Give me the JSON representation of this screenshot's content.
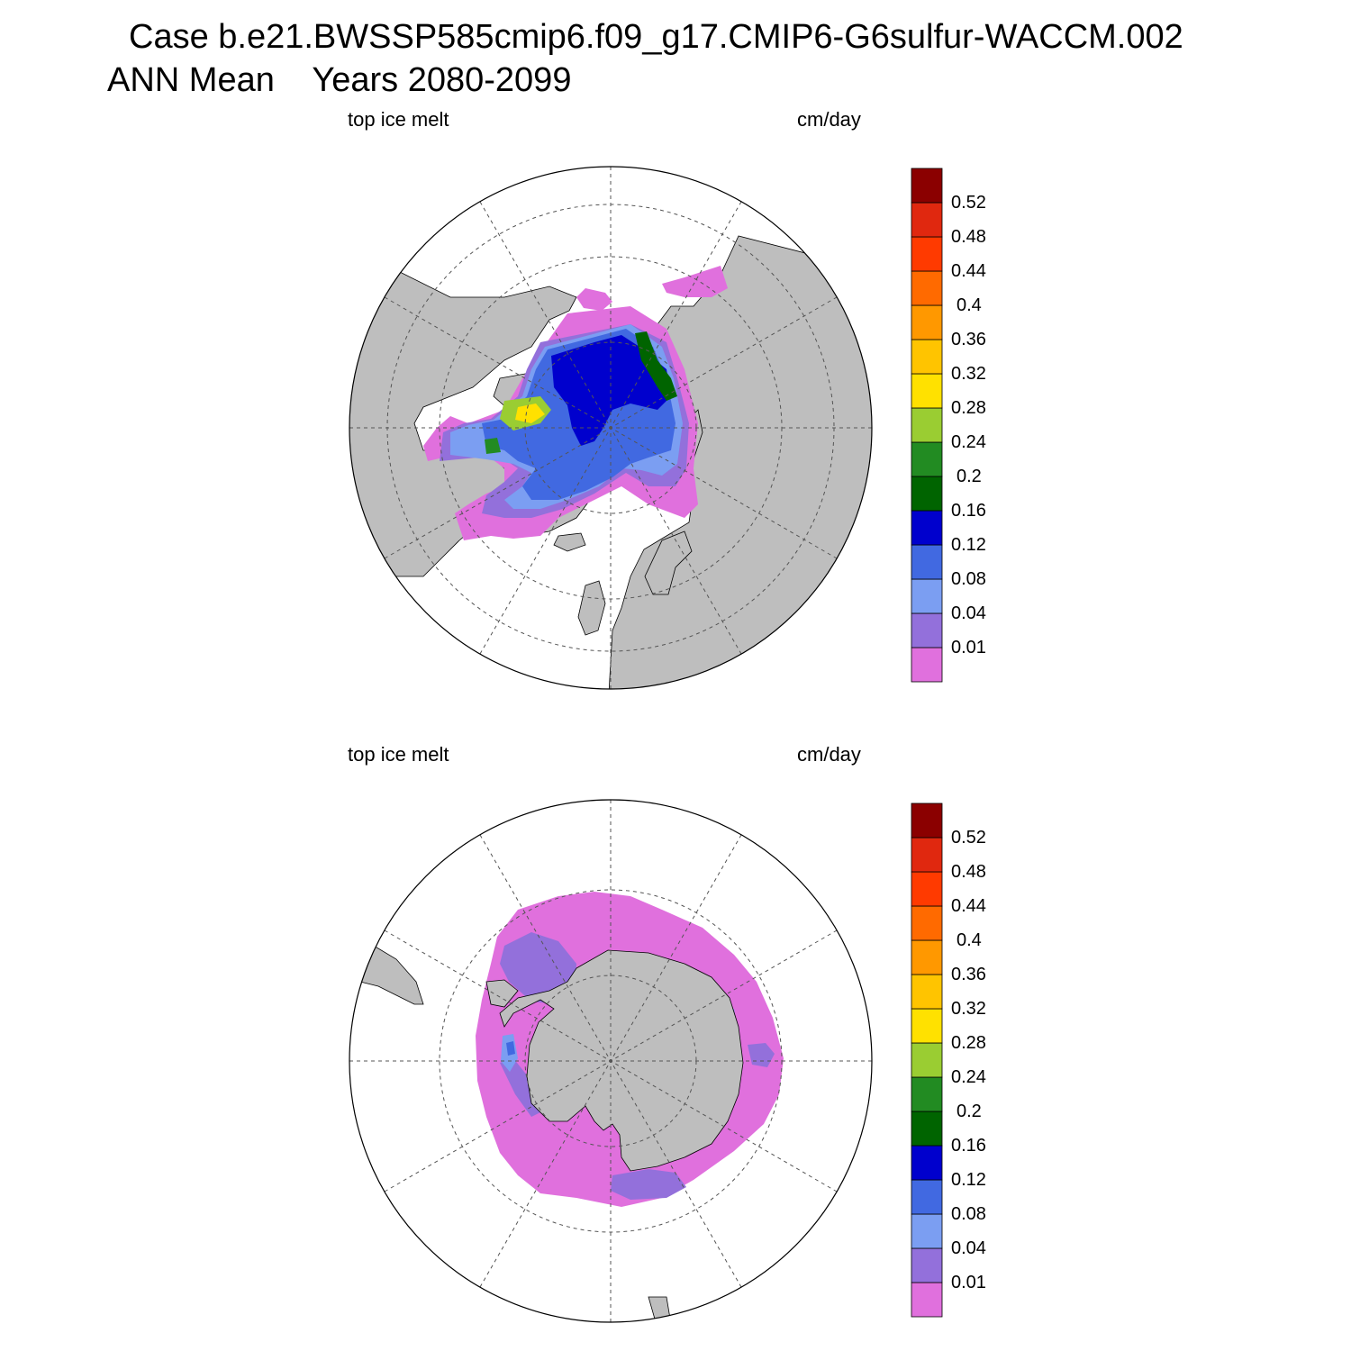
{
  "header": {
    "line1": "Case b.e21.BWSSP585cmip6.f09_g17.CMIP6-G6sulfur-WACCM.002",
    "line2_left": "ANN Mean",
    "line2_right": "Years 2080-2099"
  },
  "colors": {
    "land": "#bebebe",
    "ocean": "#ffffff",
    "grid": "#555555"
  },
  "colorbar": {
    "levels": [
      "0.01",
      "0.04",
      "0.08",
      "0.12",
      "0.16",
      "0.2",
      "0.24",
      "0.28",
      "0.32",
      "0.36",
      "0.4",
      "0.44",
      "0.48",
      "0.52"
    ],
    "colors": [
      "#e070dd",
      "#9370db",
      "#7b9ef2",
      "#4169e1",
      "#0000cd",
      "#006400",
      "#228b22",
      "#9acd32",
      "#ffe100",
      "#ffc400",
      "#ff9800",
      "#ff6a00",
      "#ff3a00",
      "#e0280f",
      "#8b0000"
    ]
  },
  "panels": [
    {
      "id": "north",
      "variable_label": "top ice melt",
      "units_label": "cm/day",
      "projection": "north polar stereographic"
    },
    {
      "id": "south",
      "variable_label": "top ice melt",
      "units_label": "cm/day",
      "projection": "south polar stereographic"
    }
  ]
}
